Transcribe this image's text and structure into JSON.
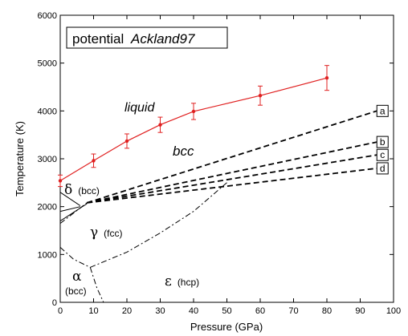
{
  "chart_data": {
    "type": "line",
    "title_prefix": "potential",
    "title_name": "Ackland97",
    "xlabel": "Pressure (GPa)",
    "ylabel": "Temperature (K)",
    "xlim": [
      0,
      100
    ],
    "ylim": [
      0,
      6000
    ],
    "xticks": [
      0,
      10,
      20,
      30,
      40,
      50,
      60,
      70,
      80,
      90,
      100
    ],
    "yticks": [
      0,
      1000,
      2000,
      3000,
      4000,
      5000,
      6000
    ],
    "grid": false,
    "melting_color": "#e02020",
    "melting_curve": {
      "x": [
        0,
        10,
        20,
        30,
        40,
        60,
        80
      ],
      "y": [
        2540,
        2960,
        3370,
        3710,
        3990,
        4320,
        4690
      ],
      "err": [
        120,
        140,
        150,
        160,
        170,
        200,
        260
      ]
    },
    "bcc_boundaries": [
      {
        "label": "a",
        "x": [
          8,
          95
        ],
        "y": [
          2080,
          4000
        ]
      },
      {
        "label": "b",
        "x": [
          8,
          95
        ],
        "y": [
          2080,
          3350
        ]
      },
      {
        "label": "c",
        "x": [
          8,
          95
        ],
        "y": [
          2080,
          3080
        ]
      },
      {
        "label": "d",
        "x": [
          8,
          95
        ],
        "y": [
          2080,
          2800
        ]
      }
    ],
    "gamma_epsilon_boundary": {
      "x": [
        9,
        20,
        30,
        40,
        45,
        50
      ],
      "y": [
        730,
        1050,
        1450,
        1900,
        2200,
        2500
      ]
    },
    "alpha_gamma_boundary": {
      "x": [
        0,
        4,
        9
      ],
      "y": [
        1150,
        900,
        730
      ]
    },
    "alpha_epsilon_boundary": {
      "x": [
        9,
        11,
        13
      ],
      "y": [
        730,
        300,
        0
      ]
    },
    "delta_gamma_boundary": {
      "x": [
        0,
        8
      ],
      "y": [
        1650,
        2080
      ]
    },
    "delta_boundary_lines": [
      {
        "x": [
          0,
          8
        ],
        "y": [
          1700,
          2060
        ]
      },
      {
        "x": [
          0,
          6
        ],
        "y": [
          1900,
          2000
        ]
      },
      {
        "x": [
          0,
          6
        ],
        "y": [
          2300,
          2020
        ]
      }
    ],
    "phases": {
      "liquid": "liquid",
      "bcc": "bcc",
      "delta_symbol": "δ",
      "delta_note": "(bcc)",
      "gamma_symbol": "γ",
      "gamma_note": "(fcc)",
      "alpha_symbol": "α",
      "alpha_note": "(bcc)",
      "epsilon_symbol": "ε",
      "epsilon_note": "(hcp)"
    }
  }
}
